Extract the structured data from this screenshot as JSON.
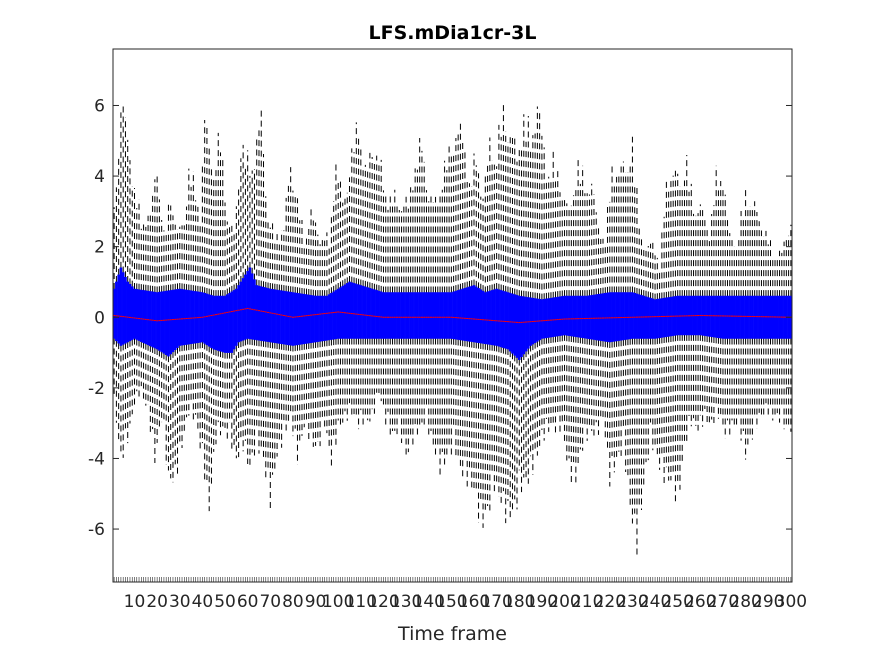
{
  "chart_data": {
    "type": "box",
    "title": "LFS.mDia1cr-3L",
    "xlabel": "Time frame",
    "ylabel": "",
    "xlim": [
      0,
      300
    ],
    "ylim": [
      -7.5,
      7.6
    ],
    "yticks": [
      -6,
      -4,
      -2,
      0,
      2,
      4,
      6
    ],
    "xticks": [
      10,
      20,
      30,
      40,
      50,
      60,
      70,
      80,
      90,
      100,
      110,
      120,
      130,
      140,
      150,
      160,
      170,
      180,
      190,
      200,
      210,
      220,
      230,
      240,
      250,
      260,
      270,
      280,
      290,
      300
    ],
    "xtick_labels": [
      "10",
      "20",
      "30",
      "40",
      "50",
      "60",
      "70",
      "80",
      "90",
      "100",
      "110",
      "120",
      "130",
      "140",
      "150",
      "160",
      "170",
      "180",
      "190",
      "200",
      "210",
      "220",
      "230",
      "240",
      "250",
      "260",
      "270",
      "280",
      "290",
      "300"
    ],
    "grid": false,
    "legend": "none",
    "n_frames": 300,
    "box_color": "#0000ff",
    "whisker_color": "#000000",
    "median_color": "#ff0000",
    "whisker_upper_envelope": [
      {
        "x": 1,
        "y": 3.2
      },
      {
        "x": 4,
        "y": 6.7
      },
      {
        "x": 6,
        "y": 6.0
      },
      {
        "x": 10,
        "y": 4.0
      },
      {
        "x": 13,
        "y": 3.0
      },
      {
        "x": 17,
        "y": 3.2
      },
      {
        "x": 20,
        "y": 4.7
      },
      {
        "x": 23,
        "y": 2.5
      },
      {
        "x": 26,
        "y": 3.8
      },
      {
        "x": 29,
        "y": 2.6
      },
      {
        "x": 32,
        "y": 3.0
      },
      {
        "x": 34,
        "y": 4.5
      },
      {
        "x": 37,
        "y": 4.0
      },
      {
        "x": 39,
        "y": 3.2
      },
      {
        "x": 41,
        "y": 6.1
      },
      {
        "x": 45,
        "y": 4.6
      },
      {
        "x": 48,
        "y": 5.6
      },
      {
        "x": 51,
        "y": 3.1
      },
      {
        "x": 54,
        "y": 2.6
      },
      {
        "x": 57,
        "y": 5.3
      },
      {
        "x": 60,
        "y": 4.8
      },
      {
        "x": 63,
        "y": 5.0
      },
      {
        "x": 66,
        "y": 6.2
      },
      {
        "x": 69,
        "y": 3.1
      },
      {
        "x": 72,
        "y": 2.5
      },
      {
        "x": 76,
        "y": 2.8
      },
      {
        "x": 79,
        "y": 4.8
      },
      {
        "x": 82,
        "y": 3.5
      },
      {
        "x": 85,
        "y": 2.5
      },
      {
        "x": 88,
        "y": 3.2
      },
      {
        "x": 92,
        "y": 2.5
      },
      {
        "x": 96,
        "y": 2.4
      },
      {
        "x": 99,
        "y": 4.8
      },
      {
        "x": 102,
        "y": 3.6
      },
      {
        "x": 105,
        "y": 4.5
      },
      {
        "x": 109,
        "y": 6.2
      },
      {
        "x": 112,
        "y": 4.4
      },
      {
        "x": 115,
        "y": 5.3
      },
      {
        "x": 118,
        "y": 4.8
      },
      {
        "x": 122,
        "y": 3.7
      },
      {
        "x": 125,
        "y": 3.7
      },
      {
        "x": 128,
        "y": 3.5
      },
      {
        "x": 131,
        "y": 3.5
      },
      {
        "x": 134,
        "y": 4.8
      },
      {
        "x": 137,
        "y": 5.3
      },
      {
        "x": 140,
        "y": 3.8
      },
      {
        "x": 143,
        "y": 3.5
      },
      {
        "x": 146,
        "y": 4.4
      },
      {
        "x": 149,
        "y": 5.0
      },
      {
        "x": 152,
        "y": 5.8
      },
      {
        "x": 155,
        "y": 5.6
      },
      {
        "x": 158,
        "y": 4.2
      },
      {
        "x": 161,
        "y": 4.9
      },
      {
        "x": 164,
        "y": 3.8
      },
      {
        "x": 167,
        "y": 5.3
      },
      {
        "x": 170,
        "y": 5.2
      },
      {
        "x": 173,
        "y": 6.3
      },
      {
        "x": 176,
        "y": 5.8
      },
      {
        "x": 179,
        "y": 5.0
      },
      {
        "x": 182,
        "y": 6.2
      },
      {
        "x": 185,
        "y": 5.5
      },
      {
        "x": 188,
        "y": 6.6
      },
      {
        "x": 192,
        "y": 4.6
      },
      {
        "x": 195,
        "y": 4.8
      },
      {
        "x": 198,
        "y": 4.2
      },
      {
        "x": 202,
        "y": 3.2
      },
      {
        "x": 206,
        "y": 4.8
      },
      {
        "x": 209,
        "y": 4.1
      },
      {
        "x": 212,
        "y": 4.1
      },
      {
        "x": 215,
        "y": 2.8
      },
      {
        "x": 218,
        "y": 2.4
      },
      {
        "x": 221,
        "y": 4.6
      },
      {
        "x": 224,
        "y": 4.5
      },
      {
        "x": 227,
        "y": 4.7
      },
      {
        "x": 230,
        "y": 5.3
      },
      {
        "x": 233,
        "y": 3.0
      },
      {
        "x": 236,
        "y": 2.0
      },
      {
        "x": 239,
        "y": 2.4
      },
      {
        "x": 242,
        "y": 1.6
      },
      {
        "x": 245,
        "y": 4.3
      },
      {
        "x": 248,
        "y": 4.4
      },
      {
        "x": 251,
        "y": 4.3
      },
      {
        "x": 254,
        "y": 4.7
      },
      {
        "x": 257,
        "y": 3.5
      },
      {
        "x": 261,
        "y": 3.3
      },
      {
        "x": 264,
        "y": 2.6
      },
      {
        "x": 267,
        "y": 4.3
      },
      {
        "x": 270,
        "y": 4.4
      },
      {
        "x": 273,
        "y": 2.5
      },
      {
        "x": 276,
        "y": 2.3
      },
      {
        "x": 280,
        "y": 3.8
      },
      {
        "x": 283,
        "y": 3.6
      },
      {
        "x": 286,
        "y": 3.0
      },
      {
        "x": 289,
        "y": 2.6
      },
      {
        "x": 292,
        "y": 2.0
      },
      {
        "x": 296,
        "y": 2.0
      },
      {
        "x": 300,
        "y": 3.0
      }
    ],
    "whisker_lower_envelope": [
      {
        "x": 1,
        "y": -2.5
      },
      {
        "x": 4,
        "y": -4.2
      },
      {
        "x": 7,
        "y": -3.6
      },
      {
        "x": 10,
        "y": -2.6
      },
      {
        "x": 13,
        "y": -2.2
      },
      {
        "x": 16,
        "y": -2.8
      },
      {
        "x": 19,
        "y": -4.2
      },
      {
        "x": 22,
        "y": -3.0
      },
      {
        "x": 25,
        "y": -4.8
      },
      {
        "x": 28,
        "y": -4.8
      },
      {
        "x": 31,
        "y": -3.8
      },
      {
        "x": 34,
        "y": -2.8
      },
      {
        "x": 37,
        "y": -3.0
      },
      {
        "x": 40,
        "y": -4.2
      },
      {
        "x": 43,
        "y": -5.7
      },
      {
        "x": 46,
        "y": -3.6
      },
      {
        "x": 49,
        "y": -3.3
      },
      {
        "x": 52,
        "y": -3.6
      },
      {
        "x": 55,
        "y": -4.2
      },
      {
        "x": 58,
        "y": -3.8
      },
      {
        "x": 61,
        "y": -4.5
      },
      {
        "x": 64,
        "y": -3.7
      },
      {
        "x": 67,
        "y": -4.3
      },
      {
        "x": 70,
        "y": -5.5
      },
      {
        "x": 73,
        "y": -4.1
      },
      {
        "x": 76,
        "y": -3.5
      },
      {
        "x": 79,
        "y": -3.0
      },
      {
        "x": 82,
        "y": -4.2
      },
      {
        "x": 85,
        "y": -3.2
      },
      {
        "x": 88,
        "y": -3.7
      },
      {
        "x": 91,
        "y": -3.9
      },
      {
        "x": 94,
        "y": -3.2
      },
      {
        "x": 97,
        "y": -4.3
      },
      {
        "x": 100,
        "y": -3.3
      },
      {
        "x": 103,
        "y": -3.0
      },
      {
        "x": 106,
        "y": -2.8
      },
      {
        "x": 109,
        "y": -3.2
      },
      {
        "x": 112,
        "y": -3.1
      },
      {
        "x": 115,
        "y": -3.0
      },
      {
        "x": 118,
        "y": -2.2
      },
      {
        "x": 121,
        "y": -3.1
      },
      {
        "x": 124,
        "y": -3.5
      },
      {
        "x": 127,
        "y": -3.3
      },
      {
        "x": 130,
        "y": -4.1
      },
      {
        "x": 133,
        "y": -3.7
      },
      {
        "x": 136,
        "y": -3.3
      },
      {
        "x": 139,
        "y": -3.1
      },
      {
        "x": 142,
        "y": -3.8
      },
      {
        "x": 145,
        "y": -4.5
      },
      {
        "x": 148,
        "y": -4.2
      },
      {
        "x": 151,
        "y": -3.8
      },
      {
        "x": 154,
        "y": -4.5
      },
      {
        "x": 157,
        "y": -4.8
      },
      {
        "x": 160,
        "y": -5.1
      },
      {
        "x": 163,
        "y": -6.2
      },
      {
        "x": 166,
        "y": -5.8
      },
      {
        "x": 169,
        "y": -5.0
      },
      {
        "x": 172,
        "y": -5.5
      },
      {
        "x": 175,
        "y": -6.0
      },
      {
        "x": 178,
        "y": -5.7
      },
      {
        "x": 181,
        "y": -5.0
      },
      {
        "x": 184,
        "y": -4.8
      },
      {
        "x": 187,
        "y": -4.3
      },
      {
        "x": 190,
        "y": -3.6
      },
      {
        "x": 193,
        "y": -3.3
      },
      {
        "x": 196,
        "y": -3.3
      },
      {
        "x": 199,
        "y": -3.3
      },
      {
        "x": 202,
        "y": -4.6
      },
      {
        "x": 205,
        "y": -4.8
      },
      {
        "x": 208,
        "y": -3.8
      },
      {
        "x": 211,
        "y": -3.4
      },
      {
        "x": 214,
        "y": -3.5
      },
      {
        "x": 217,
        "y": -3.0
      },
      {
        "x": 220,
        "y": -4.8
      },
      {
        "x": 223,
        "y": -4.3
      },
      {
        "x": 226,
        "y": -3.8
      },
      {
        "x": 229,
        "y": -5.6
      },
      {
        "x": 232,
        "y": -6.8
      },
      {
        "x": 235,
        "y": -5.0
      },
      {
        "x": 238,
        "y": -3.6
      },
      {
        "x": 241,
        "y": -4.2
      },
      {
        "x": 244,
        "y": -4.8
      },
      {
        "x": 247,
        "y": -4.8
      },
      {
        "x": 250,
        "y": -5.5
      },
      {
        "x": 253,
        "y": -3.9
      },
      {
        "x": 256,
        "y": -3.1
      },
      {
        "x": 259,
        "y": -3.3
      },
      {
        "x": 262,
        "y": -3.0
      },
      {
        "x": 265,
        "y": -3.2
      },
      {
        "x": 268,
        "y": -2.9
      },
      {
        "x": 271,
        "y": -3.5
      },
      {
        "x": 274,
        "y": -3.3
      },
      {
        "x": 277,
        "y": -3.2
      },
      {
        "x": 280,
        "y": -4.1
      },
      {
        "x": 283,
        "y": -3.5
      },
      {
        "x": 286,
        "y": -3.0
      },
      {
        "x": 289,
        "y": -2.8
      },
      {
        "x": 292,
        "y": -3.0
      },
      {
        "x": 295,
        "y": -3.0
      },
      {
        "x": 298,
        "y": -3.3
      },
      {
        "x": 300,
        "y": -3.3
      }
    ],
    "box_upper_envelope": [
      {
        "x": 1,
        "y": 0.8
      },
      {
        "x": 4,
        "y": 1.4
      },
      {
        "x": 7,
        "y": 1.0
      },
      {
        "x": 10,
        "y": 0.8
      },
      {
        "x": 20,
        "y": 0.7
      },
      {
        "x": 30,
        "y": 0.8
      },
      {
        "x": 40,
        "y": 0.7
      },
      {
        "x": 45,
        "y": 0.6
      },
      {
        "x": 50,
        "y": 0.6
      },
      {
        "x": 55,
        "y": 0.8
      },
      {
        "x": 58,
        "y": 1.1
      },
      {
        "x": 61,
        "y": 1.4
      },
      {
        "x": 64,
        "y": 0.9
      },
      {
        "x": 70,
        "y": 0.8
      },
      {
        "x": 80,
        "y": 0.7
      },
      {
        "x": 90,
        "y": 0.6
      },
      {
        "x": 95,
        "y": 0.6
      },
      {
        "x": 100,
        "y": 0.8
      },
      {
        "x": 105,
        "y": 1.0
      },
      {
        "x": 110,
        "y": 0.9
      },
      {
        "x": 120,
        "y": 0.7
      },
      {
        "x": 130,
        "y": 0.7
      },
      {
        "x": 140,
        "y": 0.7
      },
      {
        "x": 150,
        "y": 0.7
      },
      {
        "x": 160,
        "y": 0.9
      },
      {
        "x": 165,
        "y": 0.7
      },
      {
        "x": 170,
        "y": 0.8
      },
      {
        "x": 175,
        "y": 0.7
      },
      {
        "x": 180,
        "y": 0.6
      },
      {
        "x": 190,
        "y": 0.5
      },
      {
        "x": 200,
        "y": 0.6
      },
      {
        "x": 210,
        "y": 0.6
      },
      {
        "x": 220,
        "y": 0.7
      },
      {
        "x": 230,
        "y": 0.7
      },
      {
        "x": 240,
        "y": 0.5
      },
      {
        "x": 250,
        "y": 0.6
      },
      {
        "x": 260,
        "y": 0.6
      },
      {
        "x": 270,
        "y": 0.6
      },
      {
        "x": 280,
        "y": 0.6
      },
      {
        "x": 290,
        "y": 0.6
      },
      {
        "x": 300,
        "y": 0.6
      }
    ],
    "box_lower_envelope": [
      {
        "x": 1,
        "y": -0.6
      },
      {
        "x": 4,
        "y": -0.8
      },
      {
        "x": 7,
        "y": -0.7
      },
      {
        "x": 10,
        "y": -0.6
      },
      {
        "x": 20,
        "y": -0.9
      },
      {
        "x": 25,
        "y": -1.1
      },
      {
        "x": 30,
        "y": -0.8
      },
      {
        "x": 40,
        "y": -0.7
      },
      {
        "x": 45,
        "y": -0.9
      },
      {
        "x": 50,
        "y": -1.0
      },
      {
        "x": 53,
        "y": -1.0
      },
      {
        "x": 56,
        "y": -0.7
      },
      {
        "x": 60,
        "y": -0.6
      },
      {
        "x": 70,
        "y": -0.7
      },
      {
        "x": 80,
        "y": -0.8
      },
      {
        "x": 90,
        "y": -0.7
      },
      {
        "x": 100,
        "y": -0.6
      },
      {
        "x": 110,
        "y": -0.6
      },
      {
        "x": 120,
        "y": -0.6
      },
      {
        "x": 130,
        "y": -0.6
      },
      {
        "x": 140,
        "y": -0.6
      },
      {
        "x": 150,
        "y": -0.6
      },
      {
        "x": 160,
        "y": -0.7
      },
      {
        "x": 170,
        "y": -0.8
      },
      {
        "x": 175,
        "y": -0.9
      },
      {
        "x": 180,
        "y": -1.2
      },
      {
        "x": 185,
        "y": -0.8
      },
      {
        "x": 190,
        "y": -0.6
      },
      {
        "x": 200,
        "y": -0.5
      },
      {
        "x": 210,
        "y": -0.6
      },
      {
        "x": 220,
        "y": -0.7
      },
      {
        "x": 230,
        "y": -0.6
      },
      {
        "x": 240,
        "y": -0.6
      },
      {
        "x": 250,
        "y": -0.5
      },
      {
        "x": 260,
        "y": -0.5
      },
      {
        "x": 270,
        "y": -0.6
      },
      {
        "x": 280,
        "y": -0.6
      },
      {
        "x": 290,
        "y": -0.6
      },
      {
        "x": 300,
        "y": -0.6
      }
    ],
    "median_envelope": [
      {
        "x": 1,
        "y": 0.05
      },
      {
        "x": 20,
        "y": -0.1
      },
      {
        "x": 40,
        "y": 0.0
      },
      {
        "x": 60,
        "y": 0.25
      },
      {
        "x": 80,
        "y": 0.0
      },
      {
        "x": 100,
        "y": 0.15
      },
      {
        "x": 120,
        "y": 0.0
      },
      {
        "x": 150,
        "y": 0.0
      },
      {
        "x": 180,
        "y": -0.15
      },
      {
        "x": 200,
        "y": -0.05
      },
      {
        "x": 230,
        "y": 0.0
      },
      {
        "x": 260,
        "y": 0.05
      },
      {
        "x": 300,
        "y": 0.0
      }
    ]
  }
}
